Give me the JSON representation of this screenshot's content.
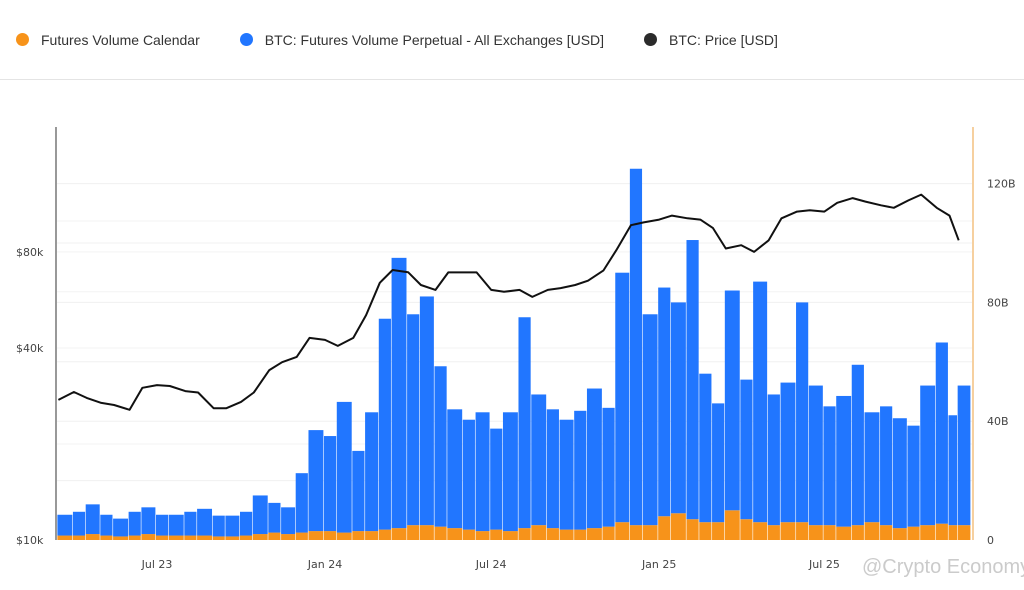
{
  "legend": [
    {
      "label": "Futures Volume Calendar",
      "color": "#f7931a"
    },
    {
      "label": "BTC: Futures Volume Perpetual - All Exchanges [USD]",
      "color": "#2176ff"
    },
    {
      "label": "BTC: Price [USD]",
      "color": "#2b2b2b"
    }
  ],
  "watermark": "@Crypto Economy",
  "chart_data": {
    "type": "bar+line",
    "x_ticks": [
      "Jul 23",
      "Jan 24",
      "Jul 24",
      "Jan 25",
      "Jul 25"
    ],
    "x_tick_dates": [
      "2023-07-01",
      "2024-01-01",
      "2024-07-01",
      "2025-01-01",
      "2025-07-01"
    ],
    "y_left": {
      "ticks": [
        "$10k",
        "$40k",
        "$80k"
      ],
      "tick_values": [
        10000,
        40000,
        80000
      ],
      "scale": "log",
      "range": [
        10000,
        160000
      ]
    },
    "y_right": {
      "ticks": [
        "0",
        "40B",
        "80B",
        "120B"
      ],
      "tick_values": [
        0,
        40,
        80,
        120
      ],
      "unit": "B USD",
      "range": [
        0,
        140
      ]
    },
    "grid": true,
    "legend_placement": "top",
    "x": [
      "2023-03-15",
      "2023-04-01",
      "2023-04-15",
      "2023-05-01",
      "2023-05-15",
      "2023-06-01",
      "2023-06-15",
      "2023-07-01",
      "2023-07-15",
      "2023-08-01",
      "2023-08-15",
      "2023-09-01",
      "2023-09-15",
      "2023-10-01",
      "2023-10-15",
      "2023-11-01",
      "2023-11-15",
      "2023-12-01",
      "2023-12-15",
      "2024-01-01",
      "2024-01-15",
      "2024-02-01",
      "2024-02-15",
      "2024-03-01",
      "2024-03-15",
      "2024-04-01",
      "2024-04-15",
      "2024-05-01",
      "2024-05-15",
      "2024-06-01",
      "2024-06-15",
      "2024-07-01",
      "2024-07-15",
      "2024-08-01",
      "2024-08-15",
      "2024-09-01",
      "2024-09-15",
      "2024-10-01",
      "2024-10-15",
      "2024-11-01",
      "2024-11-15",
      "2024-12-01",
      "2024-12-15",
      "2025-01-01",
      "2025-01-15",
      "2025-02-01",
      "2025-02-15",
      "2025-03-01",
      "2025-03-15",
      "2025-04-01",
      "2025-04-15",
      "2025-05-01",
      "2025-05-15",
      "2025-06-01",
      "2025-06-15",
      "2025-07-01",
      "2025-07-15",
      "2025-08-01",
      "2025-08-15",
      "2025-09-01",
      "2025-09-15",
      "2025-10-01",
      "2025-10-15",
      "2025-11-01",
      "2025-11-15",
      "2025-11-25"
    ],
    "series": [
      {
        "name": "Futures Volume Calendar",
        "type": "bar",
        "axis": "right",
        "color": "#f7931a",
        "values": [
          1.5,
          1.5,
          2,
          1.5,
          1.2,
          1.5,
          2,
          1.5,
          1.5,
          1.5,
          1.5,
          1.2,
          1.2,
          1.5,
          2,
          2.5,
          2,
          2.5,
          3,
          3,
          2.5,
          3,
          3,
          3.5,
          4,
          5,
          5,
          4.5,
          4,
          3.5,
          3,
          3.5,
          3,
          4,
          5,
          4,
          3.5,
          3.5,
          4,
          4.5,
          6,
          5,
          5,
          8,
          9,
          7,
          6,
          6,
          10,
          7,
          6,
          5,
          6,
          6,
          5,
          5,
          4.5,
          5,
          6,
          5,
          4,
          4.5,
          5,
          5.5,
          5,
          5
        ]
      },
      {
        "name": "BTC: Futures Volume Perpetual - All Exchanges [USD]",
        "type": "bar",
        "axis": "right",
        "color": "#2176ff",
        "values": [
          7,
          8,
          10,
          7,
          6,
          8,
          9,
          7,
          7,
          8,
          9,
          7,
          7,
          8,
          13,
          10,
          9,
          20,
          34,
          32,
          44,
          27,
          40,
          71,
          91,
          71,
          77,
          54,
          40,
          37,
          40,
          34,
          40,
          71,
          44,
          40,
          37,
          40,
          47,
          40,
          84,
          120,
          71,
          77,
          71,
          94,
          50,
          40,
          74,
          47,
          81,
          44,
          47,
          74,
          47,
          40,
          44,
          54,
          37,
          40,
          37,
          34,
          47,
          61,
          37,
          47
        ]
      },
      {
        "name": "BTC: Price [USD]",
        "type": "line",
        "axis": "left",
        "color": "#111111",
        "values": [
          27500,
          29100,
          27900,
          26900,
          26500,
          25600,
          30000,
          30600,
          30400,
          29300,
          29000,
          25900,
          25900,
          27100,
          29000,
          34100,
          36100,
          37500,
          43000,
          42400,
          40600,
          43000,
          50700,
          64000,
          70200,
          69100,
          63000,
          60800,
          69000,
          69000,
          69000,
          60800,
          60000,
          60800,
          57800,
          60800,
          61600,
          63000,
          65000,
          70000,
          81000,
          97000,
          99000,
          101000,
          104000,
          102000,
          101000,
          95000,
          82000,
          84000,
          80000,
          87000,
          102000,
          107000,
          108000,
          107000,
          114000,
          118000,
          115000,
          112000,
          110000,
          116000,
          121000,
          110000,
          104000,
          87000
        ]
      }
    ]
  }
}
